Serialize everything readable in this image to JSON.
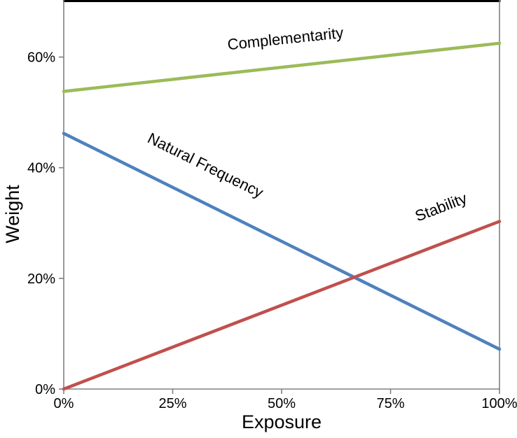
{
  "chart_data": {
    "type": "line",
    "title": "",
    "xlabel": "Exposure",
    "ylabel": "Weight",
    "xlim": [
      0,
      100
    ],
    "ylim": [
      0,
      70
    ],
    "x": [
      0,
      100
    ],
    "series": [
      {
        "name": "Complementarity",
        "color": "#9bbb59",
        "values": [
          53.8,
          62.5
        ],
        "label_pos": {
          "x": 51,
          "y": 62.4,
          "rotate": -6
        }
      },
      {
        "name": "Natural Frequency",
        "color": "#4f81bd",
        "values": [
          46.2,
          7.2
        ],
        "label_pos": {
          "x": 32,
          "y": 39.6,
          "rotate": 26.5
        }
      },
      {
        "name": "Stability",
        "color": "#c0504d",
        "values": [
          0,
          30.3
        ],
        "label_pos": {
          "x": 87,
          "y": 32,
          "rotate": -21
        }
      }
    ],
    "x_ticks": [
      "0%",
      "25%",
      "50%",
      "75%",
      "100%"
    ],
    "x_tick_values": [
      0,
      25,
      50,
      75,
      100
    ],
    "y_ticks": [
      "0%",
      "20%",
      "40%",
      "60%"
    ],
    "y_tick_values": [
      0,
      20,
      40,
      60
    ],
    "grid": false,
    "legend": "none (direct line labels)",
    "axis_color": "#808080",
    "text_color": "#000000",
    "plot_border_top_color": "#000000",
    "plot_border_right_color": "#808080"
  }
}
